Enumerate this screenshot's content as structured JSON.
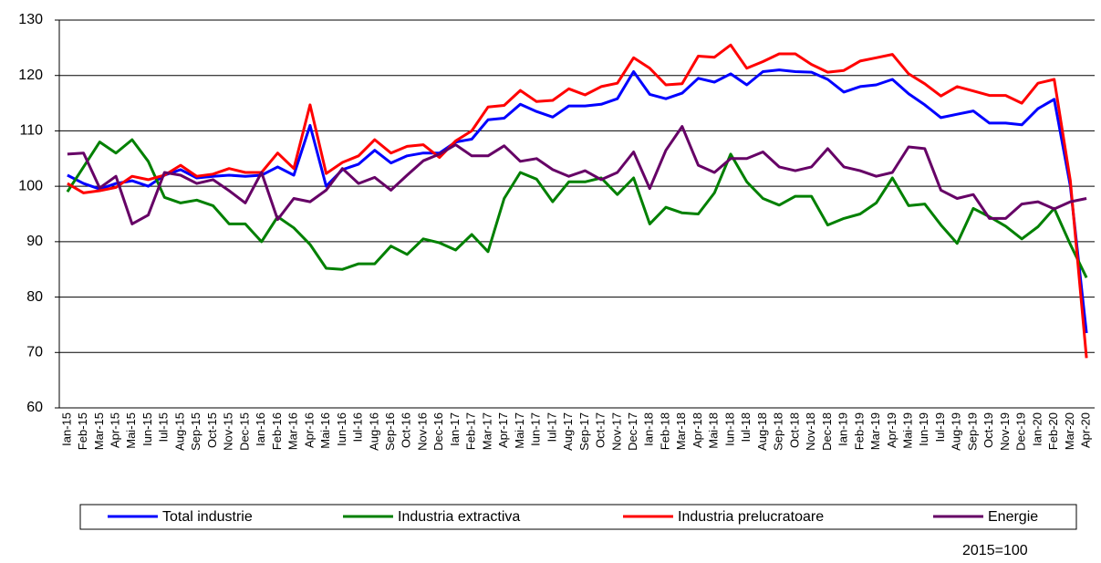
{
  "chart_data": {
    "type": "line",
    "categories": [
      "Ian-15",
      "Feb-15",
      "Mar-15",
      "Apr-15",
      "Mai-15",
      "Iun-15",
      "Iul-15",
      "Aug-15",
      "Sep-15",
      "Oct-15",
      "Nov-15",
      "Dec-15",
      "Ian-16",
      "Feb-16",
      "Mar-16",
      "Apr-16",
      "Mai-16",
      "Iun-16",
      "Iul-16",
      "Aug-16",
      "Sep-16",
      "Oct-16",
      "Nov-16",
      "Dec-16",
      "Ian-17",
      "Feb-17",
      "Mar-17",
      "Apr-17",
      "Mai-17",
      "Iun-17",
      "Iul-17",
      "Aug-17",
      "Sep-17",
      "Oct-17",
      "Nov-17",
      "Dec-17",
      "Ian-18",
      "Feb-18",
      "Mar-18",
      "Apr-18",
      "Mai-18",
      "Iun-18",
      "Iul-18",
      "Aug-18",
      "Sep-18",
      "Oct-18",
      "Nov-18",
      "Dec-18",
      "Ian-19",
      "Feb-19",
      "Mar-19",
      "Apr-19",
      "Mai-19",
      "Iun-19",
      "Iul-19",
      "Aug-19",
      "Sep-19",
      "Oct-19",
      "Nov-19",
      "Dec-19",
      "Ian-20",
      "Feb-20",
      "Mar-20",
      "Apr-20"
    ],
    "series": [
      {
        "name": "Total industrie",
        "color": "#0000ff",
        "values": [
          102,
          100.5,
          99.5,
          100.5,
          101,
          100,
          102,
          103,
          101.5,
          101.8,
          102,
          101.8,
          102,
          103.5,
          102,
          111,
          100,
          103,
          104,
          106.5,
          104.2,
          105.5,
          106,
          106,
          108,
          108.5,
          112,
          112.3,
          114.8,
          113.5,
          112.5,
          114.5,
          114.5,
          114.8,
          115.8,
          120.7,
          116.6,
          115.8,
          116.8,
          119.5,
          118.8,
          120.3,
          118.3,
          120.7,
          121,
          120.7,
          120.6,
          119.3,
          117,
          118,
          118.3,
          119.3,
          116.7,
          114.7,
          112.4,
          113,
          113.6,
          111.4,
          111.4,
          111.1,
          114,
          115.7,
          100,
          73.5
        ]
      },
      {
        "name": "Industria extractiva",
        "color": "#008000",
        "values": [
          99,
          103.5,
          108,
          106,
          108.4,
          104.5,
          98,
          97,
          97.5,
          96.5,
          93.2,
          93.2,
          90,
          94.5,
          92.5,
          89.5,
          85.2,
          85,
          86,
          86,
          89.2,
          87.7,
          90.5,
          89.8,
          88.5,
          91.3,
          88.2,
          97.8,
          102.5,
          101.3,
          97.2,
          100.8,
          100.8,
          101.5,
          98.5,
          101.5,
          93.2,
          96.2,
          95.2,
          95,
          98.8,
          105.8,
          100.8,
          97.8,
          96.6,
          98.2,
          98.2,
          93,
          94.2,
          95,
          97,
          101.5,
          96.5,
          96.8,
          93,
          89.7,
          96,
          94.5,
          92.8,
          90.5,
          92.7,
          96,
          89.5,
          83.5
        ]
      },
      {
        "name": "Industria prelucratoare",
        "color": "#ff0000",
        "values": [
          100.5,
          98.8,
          99.2,
          99.8,
          101.8,
          101.2,
          102,
          103.8,
          101.8,
          102.2,
          103.2,
          102.5,
          102.5,
          106,
          103.2,
          114.7,
          102.3,
          104.3,
          105.5,
          108.4,
          106,
          107.2,
          107.5,
          105.2,
          108.2,
          110,
          114.3,
          114.6,
          117.3,
          115.3,
          115.5,
          117.6,
          116.5,
          118,
          118.6,
          123.2,
          121.3,
          118.3,
          118.5,
          123.5,
          123.3,
          125.5,
          121.3,
          122.5,
          123.9,
          123.9,
          122,
          120.6,
          120.9,
          122.6,
          123.2,
          123.8,
          120.3,
          118.5,
          116.3,
          118,
          117.2,
          116.4,
          116.4,
          115,
          118.6,
          119.3,
          101,
          69
        ]
      },
      {
        "name": "Energie",
        "color": "#660066",
        "values": [
          105.8,
          106,
          99.7,
          101.8,
          93.2,
          94.8,
          102.5,
          102,
          100.5,
          101.2,
          99.2,
          97,
          102.5,
          94,
          97.8,
          97.2,
          99.3,
          103.2,
          100.5,
          101.6,
          99.3,
          102,
          104.6,
          105.8,
          107.5,
          105.5,
          105.5,
          107.3,
          104.5,
          105,
          103,
          101.8,
          102.8,
          101.2,
          102.5,
          106.2,
          99.6,
          106.5,
          110.8,
          103.8,
          102.5,
          105,
          105,
          106.2,
          103.5,
          102.8,
          103.5,
          106.8,
          103.5,
          102.8,
          101.8,
          102.5,
          107.1,
          106.8,
          99.3,
          97.8,
          98.5,
          94.2,
          94.2,
          96.8,
          97.2,
          95.9,
          97.2,
          97.8
        ]
      }
    ],
    "ylim": [
      60,
      130
    ],
    "yticks": [
      60,
      70,
      80,
      90,
      100,
      110,
      120,
      130
    ],
    "grid": true,
    "annotation": "2015=100"
  }
}
